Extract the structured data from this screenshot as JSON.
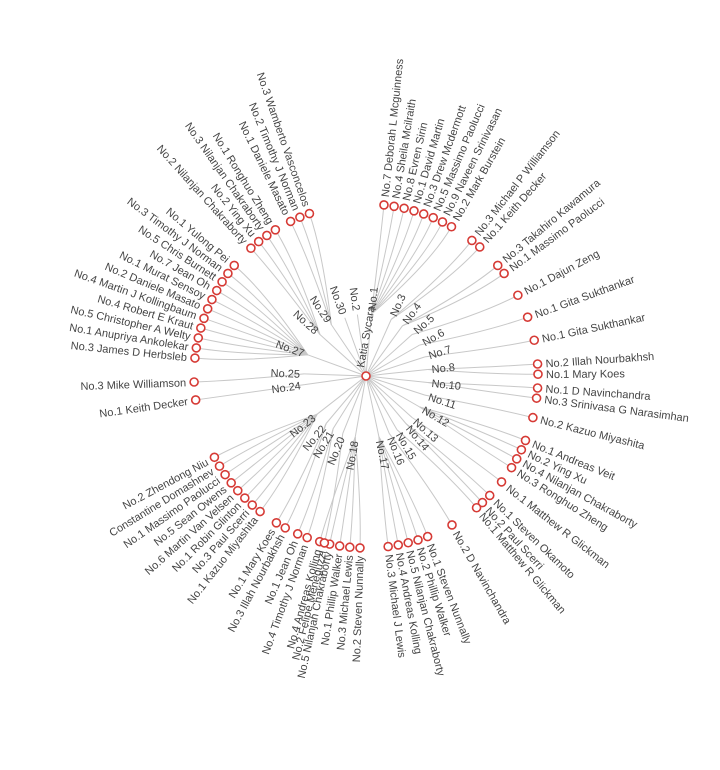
{
  "diagram": {
    "type": "radial-tree",
    "colors": {
      "node_stroke": "#d63a35",
      "link": "#c8c8c8",
      "text": "#444444"
    },
    "root": "Katia Sycara",
    "groups": [
      {
        "label": "No.1",
        "members": [
          "No.7 Deborah L Mcguinness",
          "No.4 Sheila Mcilraith",
          "No.8 Evren Sirin",
          "No.1 David Martin",
          "No.3 Drew Mcdermott",
          "No.5 Massimo Paolucci",
          "No.9 Naveen Srinivasan",
          "No.2 Mark Burstein"
        ]
      },
      {
        "label": "No.3",
        "members": [
          "No.3 Michael P Williamson",
          "No.1 Keith Decker"
        ]
      },
      {
        "label": "No.4",
        "members": [
          "No.3 Takahiro Kawamura",
          "No.1 Massimo Paolucci"
        ]
      },
      {
        "label": "No.5",
        "members": [
          "No.1 Dajun Zeng"
        ]
      },
      {
        "label": "No.6",
        "members": [
          "No.1 Gita Sukthankar"
        ]
      },
      {
        "label": "No.7",
        "members": [
          "No.1 Gita Sukthankar"
        ]
      },
      {
        "label": "No.8",
        "members": [
          "No.2 Illah Nourbakhsh",
          "No.1 Mary Koes"
        ]
      },
      {
        "label": "No.10",
        "members": [
          "No.1 D Navinchandra",
          "No.3 Srinivasa G Narasimhan"
        ]
      },
      {
        "label": "No.11",
        "members": [
          "No.2 Kazuo Miyashita"
        ]
      },
      {
        "label": "No.12",
        "members": [
          "No.1 Andreas Veit",
          "No.2 Ying Xu",
          "No.4 Nilanjan Chakraborty",
          "No.3 Ronghuo Zheng"
        ]
      },
      {
        "label": "No.13",
        "members": [
          "No.1 Matthew R Glickman"
        ]
      },
      {
        "label": "No.14",
        "members": [
          "No.1 Steven Okamoto",
          "No.2 Paul Scerri"
        ]
      },
      {
        "label": "No.15",
        "members": [
          "No.1 Matthew R Glickman"
        ]
      },
      {
        "label": "No.16",
        "members": [
          "No.2 D Navinchandra"
        ]
      },
      {
        "label": "No.17",
        "members": [
          "No.1 Steven Nunnally",
          "No.2 Phillip Walker",
          "No.5 Nilanjan Chakraborty",
          "No.4 Andreas Kolling",
          "No.3 Michael J Lewis"
        ]
      },
      {
        "label": "No.18",
        "members": [
          "No.2 Steven Nunnally",
          "No.3 Michael Lewis",
          "No.1 Phillip Walker",
          "No.5 Nilanjan Chakraborty",
          "No.4 Andreas Kolling"
        ]
      },
      {
        "label": "No.20",
        "members": [
          "No.2 Felipe Meneguzzi"
        ]
      },
      {
        "label": "No.21",
        "members": [
          "No.4 Timothy J Norman",
          "No.1 Jean Oh"
        ]
      },
      {
        "label": "No.22",
        "members": [
          "No.3 Illah Nourbakhsh",
          "No.1 Mary Koes"
        ]
      },
      {
        "label": "No.23",
        "members": [
          "No.1 Kazuo Miyashita",
          "No.3 Paul Scerri",
          "No.1 Robin Glinton",
          "No.6 Martin Van Velsen",
          "No.5 Sean Owens",
          "No.1 Massimo Paolucci",
          "Constantine Domashnev",
          "No.2 Zhendong Niu"
        ]
      },
      {
        "label": "No.24",
        "members": [
          "No.1 Keith Decker"
        ]
      },
      {
        "label": "No.25",
        "members": [
          "No.3 Mike Williamson"
        ]
      },
      {
        "label": "No.27",
        "members": [
          "No.3 James D Herbsleb",
          "No.1 Anupriya Ankolekar",
          "No.5 Christopher A Welty",
          "No.4 Robert E Kraut",
          "No.4 Martin J Kollingbaum",
          "No.2 Daniele Masato",
          "No.1 Murat Sensoy",
          "No.7 Jean Oh",
          "No.5 Chris Burnett",
          "No.3 Timothy J Norman",
          "No.1 Yulong Pei"
        ]
      },
      {
        "label": "No.28",
        "members": [
          "No.2 Nilanjan Chakraborty",
          "No.2 Ying Xu",
          "No.3 Nilanjan Chakraborty",
          "No.1 Ronghuo Zheng"
        ]
      },
      {
        "label": "No.29",
        "members": [
          "No.1 Daniele Masato",
          "No.2 Timothy J Norman",
          "No.3 Wamberto Vasconcelos"
        ]
      },
      {
        "label": "No.30",
        "members": []
      },
      {
        "label": "No.2",
        "members": []
      }
    ]
  }
}
